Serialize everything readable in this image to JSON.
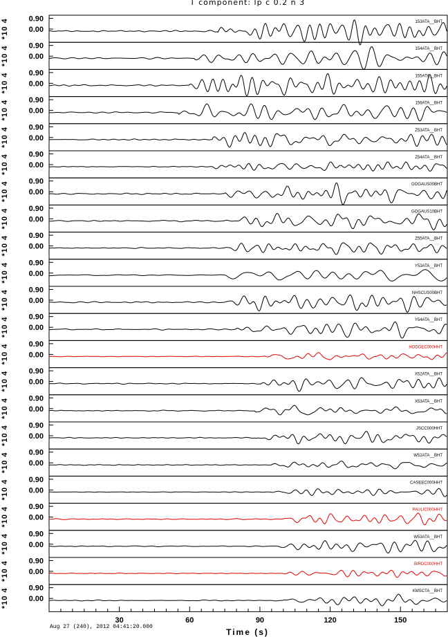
{
  "chart_data": {
    "type": "line",
    "title": "T component: lp c 0.2 n 3",
    "xlabel": "Time (s)",
    "ylabel_unit": "*10 4",
    "start_time": "Aug 27 (240), 2012 04:41:20.000",
    "xlim": [
      0,
      170
    ],
    "xticks": [
      30,
      60,
      90,
      120,
      150
    ],
    "y_tick_labels": [
      "0.90",
      "0.00"
    ],
    "colors": {
      "default": "#000000",
      "highlight": "#e00000"
    },
    "traces": [
      {
        "station": "153ATA__BHT",
        "color": "#000000",
        "seed": 1,
        "amp": 0.9,
        "onset": 72
      },
      {
        "station": "154ATA__BHT",
        "color": "#000000",
        "seed": 2,
        "amp": 1.0,
        "onset": 62
      },
      {
        "station": "155ATA__BHT",
        "color": "#000000",
        "seed": 3,
        "amp": 1.0,
        "onset": 60
      },
      {
        "station": "156ATA__BHT",
        "color": "#000000",
        "seed": 4,
        "amp": 0.9,
        "onset": 55
      },
      {
        "station": "Z53ATA__BHT",
        "color": "#000000",
        "seed": 5,
        "amp": 0.85,
        "onset": 70
      },
      {
        "station": "Z54ATA__BHT",
        "color": "#000000",
        "seed": 6,
        "amp": 0.45,
        "onset": 70
      },
      {
        "station": "GOGAUS00BHT",
        "color": "#000000",
        "seed": 7,
        "amp": 1.0,
        "onset": 75
      },
      {
        "station": "GOGAUS10BHT",
        "color": "#000000",
        "seed": 8,
        "amp": 1.0,
        "onset": 75
      },
      {
        "station": "Z55ATA__BHT",
        "color": "#000000",
        "seed": 9,
        "amp": 0.6,
        "onset": 75
      },
      {
        "station": "Y53ATA__BHT",
        "color": "#000000",
        "seed": 10,
        "amp": 0.75,
        "onset": 75
      },
      {
        "station": "NHSCUS00BHT",
        "color": "#000000",
        "seed": 11,
        "amp": 0.9,
        "onset": 75
      },
      {
        "station": "Y54ATA__BHT",
        "color": "#000000",
        "seed": 12,
        "amp": 0.7,
        "onset": 80
      },
      {
        "station": "HODGEC000HHT",
        "color": "#e00000",
        "seed": 13,
        "amp": 0.5,
        "onset": 92
      },
      {
        "station": "X52ATA__BHT",
        "color": "#000000",
        "seed": 14,
        "amp": 0.6,
        "onset": 90
      },
      {
        "station": "X53ATA__BHT",
        "color": "#000000",
        "seed": 15,
        "amp": 0.6,
        "onset": 88
      },
      {
        "station": "JSCC000HHT",
        "color": "#000000",
        "seed": 16,
        "amp": 0.6,
        "onset": 88
      },
      {
        "station": "W52ATA__BHT",
        "color": "#000000",
        "seed": 17,
        "amp": 0.55,
        "onset": 95
      },
      {
        "station": "CASEEC000HHT",
        "color": "#000000",
        "seed": 18,
        "amp": 0.35,
        "onset": 95
      },
      {
        "station": "PAULIC000HHT",
        "color": "#e00000",
        "seed": 19,
        "amp": 0.6,
        "onset": 98
      },
      {
        "station": "W53ATA__BHT",
        "color": "#000000",
        "seed": 20,
        "amp": 0.6,
        "onset": 98
      },
      {
        "station": "BIRDC000HHT",
        "color": "#e00000",
        "seed": 21,
        "amp": 0.4,
        "onset": 100
      },
      {
        "station": "KMSCTA__BHT",
        "color": "#000000",
        "seed": 22,
        "amp": 0.55,
        "onset": 100
      }
    ]
  }
}
